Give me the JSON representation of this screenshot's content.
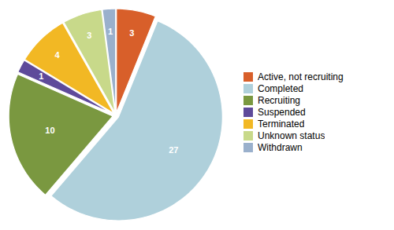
{
  "chart_data": {
    "type": "pie",
    "categories": [
      "Active, not recruiting",
      "Completed",
      "Recruiting",
      "Suspended",
      "Terminated",
      "Unknown status",
      "Withdrawn"
    ],
    "values": [
      3,
      27,
      10,
      1,
      4,
      3,
      1
    ],
    "colors": [
      "#d85f2a",
      "#afd0db",
      "#7a9840",
      "#5e4a9a",
      "#f2b824",
      "#c8d98a",
      "#9ab0cc"
    ],
    "data_labels": true,
    "legend": "right"
  }
}
